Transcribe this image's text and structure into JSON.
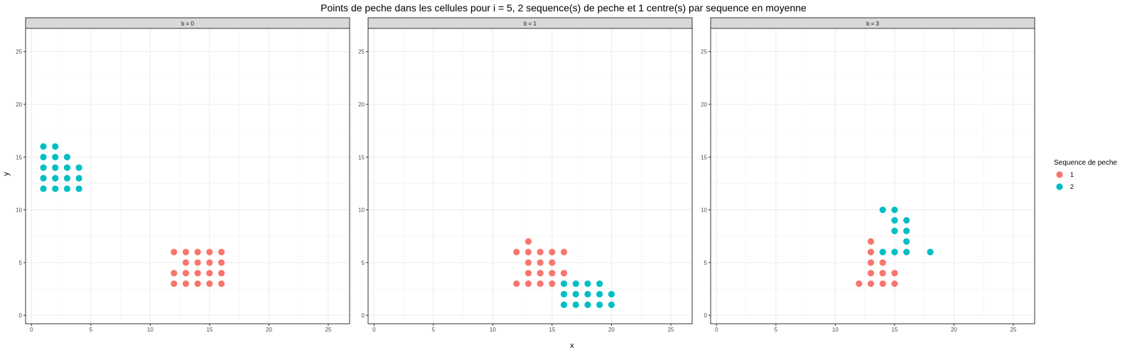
{
  "chart_data": {
    "type": "scatter",
    "title": "Points de peche dans les cellules pour i = 5, 2 sequence(s) de peche et 1 centre(s) par sequence en moyenne",
    "xlabel": "x",
    "ylabel": "y",
    "xlim": [
      -0.5,
      26.8
    ],
    "ylim": [
      -0.8,
      27.2
    ],
    "x_ticks": [
      0,
      5,
      10,
      15,
      20,
      25
    ],
    "y_ticks": [
      0,
      5,
      10,
      15,
      20,
      25
    ],
    "grid": true,
    "legend": {
      "title": "Sequence de peche",
      "placement": "right",
      "entries": [
        {
          "label": "1",
          "color": "#F8766D"
        },
        {
          "label": "2",
          "color": "#00BFC4"
        }
      ]
    },
    "panels": [
      {
        "label": "b = 0",
        "series": [
          {
            "name": "1",
            "color": "#F8766D",
            "points": [
              [
                12,
                3
              ],
              [
                13,
                3
              ],
              [
                14,
                3
              ],
              [
                15,
                3
              ],
              [
                16,
                3
              ],
              [
                12,
                4
              ],
              [
                13,
                4
              ],
              [
                14,
                4
              ],
              [
                15,
                4
              ],
              [
                16,
                4
              ],
              [
                13,
                5
              ],
              [
                14,
                5
              ],
              [
                15,
                5
              ],
              [
                16,
                5
              ],
              [
                12,
                6
              ],
              [
                13,
                6
              ],
              [
                14,
                6
              ],
              [
                15,
                6
              ],
              [
                16,
                6
              ]
            ]
          },
          {
            "name": "2",
            "color": "#00BFC4",
            "points": [
              [
                1,
                12
              ],
              [
                2,
                12
              ],
              [
                3,
                12
              ],
              [
                4,
                12
              ],
              [
                1,
                13
              ],
              [
                2,
                13
              ],
              [
                3,
                13
              ],
              [
                4,
                13
              ],
              [
                1,
                14
              ],
              [
                2,
                14
              ],
              [
                3,
                14
              ],
              [
                4,
                14
              ],
              [
                1,
                15
              ],
              [
                2,
                15
              ],
              [
                3,
                15
              ],
              [
                1,
                16
              ],
              [
                2,
                16
              ]
            ]
          }
        ]
      },
      {
        "label": "b = 1",
        "series": [
          {
            "name": "1",
            "color": "#F8766D",
            "points": [
              [
                12,
                3
              ],
              [
                13,
                3
              ],
              [
                14,
                3
              ],
              [
                15,
                3
              ],
              [
                13,
                4
              ],
              [
                14,
                4
              ],
              [
                15,
                4
              ],
              [
                16,
                4
              ],
              [
                13,
                5
              ],
              [
                14,
                5
              ],
              [
                15,
                5
              ],
              [
                12,
                6
              ],
              [
                13,
                6
              ],
              [
                14,
                6
              ],
              [
                15,
                6
              ],
              [
                16,
                6
              ],
              [
                13,
                7
              ]
            ]
          },
          {
            "name": "2",
            "color": "#00BFC4",
            "points": [
              [
                16,
                1
              ],
              [
                17,
                1
              ],
              [
                18,
                1
              ],
              [
                19,
                1
              ],
              [
                20,
                1
              ],
              [
                16,
                2
              ],
              [
                17,
                2
              ],
              [
                18,
                2
              ],
              [
                19,
                2
              ],
              [
                20,
                2
              ],
              [
                16,
                3
              ],
              [
                17,
                3
              ],
              [
                18,
                3
              ],
              [
                19,
                3
              ]
            ]
          }
        ]
      },
      {
        "label": "b = 3",
        "series": [
          {
            "name": "1",
            "color": "#F8766D",
            "points": [
              [
                12,
                3
              ],
              [
                13,
                3
              ],
              [
                14,
                3
              ],
              [
                15,
                3
              ],
              [
                13,
                4
              ],
              [
                14,
                4
              ],
              [
                15,
                4
              ],
              [
                13,
                5
              ],
              [
                14,
                5
              ],
              [
                13,
                6
              ],
              [
                13,
                7
              ]
            ]
          },
          {
            "name": "2",
            "color": "#00BFC4",
            "points": [
              [
                14,
                6
              ],
              [
                15,
                6
              ],
              [
                16,
                6
              ],
              [
                18,
                6
              ],
              [
                16,
                7
              ],
              [
                15,
                8
              ],
              [
                16,
                8
              ],
              [
                15,
                9
              ],
              [
                16,
                9
              ],
              [
                14,
                10
              ],
              [
                15,
                10
              ]
            ]
          }
        ]
      }
    ]
  }
}
